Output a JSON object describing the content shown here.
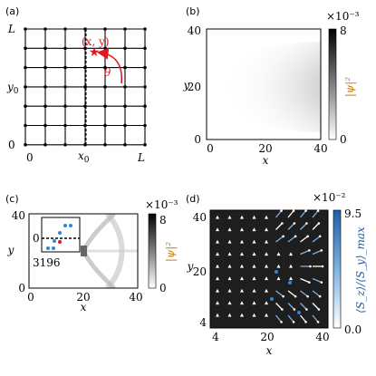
{
  "panel_a": {
    "label": "(a)",
    "corner_top": "L",
    "corner_right": "L",
    "origin_y": "0",
    "origin_x": "0",
    "y0": "y",
    "y0_sub": "0",
    "x0": "x",
    "x0_sub": "0",
    "point_label": "(x, y)",
    "angle_label": "θ",
    "accent": "#e0191f"
  },
  "panel_b": {
    "label": "(b)",
    "ylabel": "y",
    "xlabel": "x",
    "yticks": [
      "0",
      "20",
      "40"
    ],
    "xticks": [
      "0",
      "20",
      "40"
    ],
    "cbar_label": "|ψ|²",
    "cbar_ticks": [
      "0",
      "8"
    ],
    "cbar_scale": "×10⁻³"
  },
  "panel_c": {
    "label": "(c)",
    "ylabel": "y",
    "xlabel": "x",
    "yticks": [
      "0",
      "40"
    ],
    "xticks": [
      "0",
      "20",
      "40"
    ],
    "inset_label": "3196",
    "inset_zero": "0",
    "cbar_label": "|ψ|²",
    "cbar_ticks": [
      "0",
      "8"
    ],
    "cbar_scale": "×10⁻³"
  },
  "panel_d": {
    "label": "(d)",
    "ylabel": "y",
    "xlabel": "x",
    "yticks": [
      "4",
      "20",
      "40"
    ],
    "xticks": [
      "4",
      "20",
      "40"
    ],
    "cbar_label": "⟨S_z⟩/⟨S_y⟩_max",
    "cbar_ticks": [
      "0.0",
      "9.5"
    ],
    "cbar_scale": "×10⁻²"
  }
}
